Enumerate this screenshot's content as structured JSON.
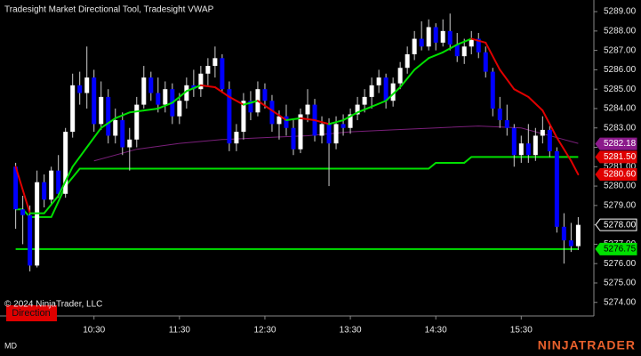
{
  "chart_data": {
    "type": "candlestick",
    "title": "Tradesight Market Directional Tool, Tradesight VWAP",
    "watermark": "© 2024 NinjaTrader, LLC",
    "indicator_label": "Direction",
    "footer_left": "MD",
    "brand": "NINJATRADER",
    "up_color": "#ffffff",
    "down_color": "#0000ff",
    "x": [
      "09:35",
      "09:40",
      "09:45",
      "09:50",
      "09:55",
      "10:00",
      "10:05",
      "10:10",
      "10:15",
      "10:20",
      "10:25",
      "10:30",
      "10:35",
      "10:40",
      "10:45",
      "10:50",
      "10:55",
      "11:00",
      "11:05",
      "11:10",
      "11:15",
      "11:20",
      "11:25",
      "11:30",
      "11:35",
      "11:40",
      "11:45",
      "11:50",
      "11:55",
      "12:00",
      "12:05",
      "12:10",
      "12:15",
      "12:20",
      "12:25",
      "12:30",
      "12:35",
      "12:40",
      "12:45",
      "12:50",
      "12:55",
      "13:00",
      "13:05",
      "13:10",
      "13:15",
      "13:20",
      "13:25",
      "13:30",
      "13:35",
      "13:40",
      "13:45",
      "13:50",
      "13:55",
      "14:00",
      "14:05",
      "14:10",
      "14:15",
      "14:20",
      "14:25",
      "14:30",
      "14:35",
      "14:40",
      "14:45",
      "14:50",
      "14:55",
      "15:00",
      "15:05",
      "15:10",
      "15:15",
      "15:20",
      "15:25",
      "15:30",
      "15:35",
      "15:40",
      "15:45",
      "15:50",
      "15:55",
      "16:00",
      "16:05",
      "16:10"
    ],
    "open": [
      5281.0,
      5278.8,
      5278.5,
      5275.9,
      5280.2,
      5279.3,
      5280.8,
      5279.6,
      5282.8,
      5285.2,
      5284.8,
      5285.6,
      5283.2,
      5284.6,
      5282.6,
      5283.4,
      5282.0,
      5282.4,
      5284.2,
      5285.6,
      5284.8,
      5284.2,
      5285.0,
      5283.6,
      5284.4,
      5285.2,
      5285.0,
      5285.8,
      5286.2,
      5286.6,
      5285.0,
      5282.2,
      5282.8,
      5284.4,
      5283.8,
      5285.0,
      5284.4,
      5283.2,
      5283.6,
      5283.0,
      5281.9,
      5283.7,
      5284.2,
      5282.6,
      5283.2,
      5282.2,
      5283.2,
      5283.0,
      5283.7,
      5284.2,
      5284.6,
      5285.2,
      5285.6,
      5284.4,
      5285.3,
      5286.1,
      5286.8,
      5287.6,
      5287.2,
      5288.2,
      5287.4,
      5288.0,
      5287.3,
      5286.7,
      5287.2,
      5287.6,
      5286.9,
      5285.9,
      5284.0,
      5283.4,
      5283.0,
      5281.6,
      5282.2,
      5281.6,
      5282.6,
      5282.9,
      5281.8,
      5277.9,
      5277.2,
      5276.9
    ],
    "high": [
      5281.2,
      5279.5,
      5279.0,
      5280.8,
      5280.6,
      5281.0,
      5281.6,
      5283.0,
      5285.8,
      5285.9,
      5287.2,
      5286.0,
      5285.4,
      5285.0,
      5284.0,
      5283.8,
      5283.0,
      5284.6,
      5286.2,
      5285.9,
      5285.6,
      5285.4,
      5285.3,
      5284.8,
      5285.6,
      5286.0,
      5286.2,
      5286.6,
      5287.2,
      5286.8,
      5285.4,
      5283.2,
      5284.8,
      5284.9,
      5285.4,
      5285.3,
      5284.7,
      5283.9,
      5284.2,
      5283.4,
      5284.0,
      5285.0,
      5284.5,
      5283.6,
      5283.5,
      5283.6,
      5283.7,
      5284.0,
      5284.6,
      5285.0,
      5285.6,
      5286.0,
      5285.8,
      5285.6,
      5286.4,
      5287.2,
      5288.0,
      5288.5,
      5288.6,
      5288.4,
      5288.6,
      5288.9,
      5287.9,
      5287.6,
      5288.0,
      5287.9,
      5287.2,
      5286.1,
      5284.6,
      5284.2,
      5283.2,
      5282.6,
      5283.2,
      5283.0,
      5283.6,
      5283.1,
      5282.0,
      5278.6,
      5278.1,
      5278.4
    ],
    "low": [
      5277.8,
      5277.0,
      5275.6,
      5275.8,
      5278.9,
      5279.0,
      5279.4,
      5279.4,
      5282.5,
      5284.2,
      5284.0,
      5282.8,
      5282.9,
      5282.2,
      5282.2,
      5281.6,
      5280.8,
      5282.0,
      5284.0,
      5284.4,
      5283.8,
      5283.8,
      5283.2,
      5283.2,
      5284.0,
      5284.6,
      5284.6,
      5285.2,
      5285.6,
      5284.8,
      5281.8,
      5281.8,
      5282.4,
      5283.4,
      5283.6,
      5284.0,
      5282.8,
      5282.4,
      5282.6,
      5281.6,
      5281.7,
      5283.3,
      5282.3,
      5282.2,
      5280.0,
      5281.9,
      5282.6,
      5282.7,
      5283.4,
      5283.8,
      5284.0,
      5284.8,
      5284.0,
      5284.1,
      5285.0,
      5285.8,
      5286.5,
      5287.0,
      5287.0,
      5287.0,
      5287.2,
      5287.0,
      5286.4,
      5286.3,
      5286.8,
      5286.6,
      5285.6,
      5283.6,
      5283.0,
      5282.6,
      5281.0,
      5281.2,
      5281.2,
      5281.3,
      5282.2,
      5281.5,
      5277.6,
      5276.0,
      5276.6,
      5276.7
    ],
    "close": [
      5278.8,
      5278.5,
      5275.9,
      5280.2,
      5279.3,
      5280.8,
      5279.6,
      5282.8,
      5285.2,
      5284.8,
      5285.6,
      5283.2,
      5284.6,
      5282.6,
      5283.4,
      5282.0,
      5282.4,
      5284.2,
      5285.6,
      5284.8,
      5284.2,
      5285.0,
      5283.6,
      5284.4,
      5285.2,
      5285.0,
      5285.8,
      5286.2,
      5286.6,
      5285.0,
      5282.2,
      5282.8,
      5284.4,
      5283.8,
      5285.0,
      5284.4,
      5283.2,
      5283.6,
      5283.0,
      5281.9,
      5283.7,
      5284.2,
      5282.6,
      5283.2,
      5282.2,
      5283.2,
      5283.0,
      5283.7,
      5284.2,
      5284.6,
      5285.2,
      5285.6,
      5284.4,
      5285.3,
      5286.1,
      5286.8,
      5287.6,
      5287.2,
      5288.2,
      5287.4,
      5288.0,
      5287.3,
      5286.7,
      5287.2,
      5287.6,
      5286.9,
      5285.9,
      5284.0,
      5283.4,
      5283.0,
      5281.6,
      5282.2,
      5281.6,
      5282.6,
      5282.9,
      5281.8,
      5277.9,
      5277.2,
      5276.9,
      5278.0
    ],
    "moving_average": {
      "x": [
        "09:35",
        "09:45",
        "09:55",
        "10:05",
        "10:15",
        "10:25",
        "10:35",
        "10:45",
        "10:55",
        "11:05",
        "11:15",
        "11:25",
        "11:35",
        "11:45",
        "11:55",
        "12:05",
        "12:15",
        "12:25",
        "12:35",
        "12:45",
        "12:55",
        "13:05",
        "13:15",
        "13:25",
        "13:35",
        "13:45",
        "13:55",
        "14:05",
        "14:15",
        "14:25",
        "14:35",
        "14:45",
        "14:55",
        "15:05",
        "15:15",
        "15:25",
        "15:35",
        "15:45",
        "15:55",
        "16:05",
        "16:10"
      ],
      "values": [
        5281.0,
        5278.6,
        5278.6,
        5279.5,
        5281.0,
        5282.0,
        5283.0,
        5283.5,
        5283.8,
        5283.9,
        5284.0,
        5284.3,
        5284.9,
        5285.2,
        5285.1,
        5284.6,
        5284.2,
        5284.4,
        5283.9,
        5283.4,
        5283.5,
        5283.4,
        5283.2,
        5283.4,
        5283.8,
        5284.1,
        5284.4,
        5285.1,
        5286.0,
        5286.6,
        5286.9,
        5287.3,
        5287.6,
        5287.4,
        5286.0,
        5285.0,
        5284.6,
        5283.9,
        5282.5,
        5281.3,
        5280.6
      ],
      "rising_color": "#00e000",
      "falling_color": "#e00000"
    },
    "overlays": [
      {
        "x": [
          "09:35",
          "09:40",
          "09:45",
          "10:00",
          "10:10",
          "10:20",
          "14:25",
          "14:30",
          "14:50",
          "14:55",
          "16:10"
        ],
        "values": [
          5278.8,
          5278.8,
          5278.4,
          5278.4,
          5280.0,
          5280.9,
          5280.9,
          5281.2,
          5281.2,
          5281.5,
          5281.5
        ],
        "color": "#00e000",
        "width": 2
      },
      {
        "x": [
          "09:35",
          "16:10"
        ],
        "values": [
          5276.75,
          5276.75
        ],
        "color": "#00e000",
        "width": 2
      },
      {
        "x": [
          "10:30",
          "11:00",
          "11:30",
          "12:00",
          "12:30",
          "13:00",
          "13:30",
          "14:00",
          "14:30",
          "15:00",
          "15:30",
          "15:50",
          "16:10"
        ],
        "values": [
          5281.3,
          5281.9,
          5282.2,
          5282.4,
          5282.5,
          5282.6,
          5282.8,
          5282.9,
          5283.0,
          5283.1,
          5283.0,
          5282.6,
          5282.2
        ],
        "color": "#7a1f7a",
        "width": 1
      }
    ],
    "price_markers": [
      {
        "value": 5282.18,
        "label": "5282.18",
        "color": "#8b1a8b",
        "text_color": "#ffffff"
      },
      {
        "value": 5281.5,
        "label": "5281.50",
        "color": "#e00000",
        "text_color": "#ffffff"
      },
      {
        "value": 5280.6,
        "label": "5280.60",
        "color": "#e00000",
        "text_color": "#ffffff"
      },
      {
        "value": 5278,
        "label": "5278.00",
        "color": "#000000",
        "text_color": "#ffffff"
      },
      {
        "value": 5276.75,
        "label": "5276.75",
        "color": "#00e000",
        "text_color": "#000000"
      }
    ],
    "xlim": [
      "09:24",
      "16:21"
    ],
    "xticks": [
      "10:30",
      "11:30",
      "12:30",
      "13:30",
      "14:30",
      "15:30"
    ],
    "ylim": [
      5273.3,
      5289.6
    ],
    "yticks": [
      {
        "value": 5274,
        "label": "5274.00"
      },
      {
        "value": 5275,
        "label": "5275.00"
      },
      {
        "value": 5276,
        "label": "5276.00"
      },
      {
        "value": 5277,
        "label": "5277.00"
      },
      {
        "value": 5278,
        "label": "5278.00"
      },
      {
        "value": 5279,
        "label": "5279.00"
      },
      {
        "value": 5280,
        "label": "5280.00"
      },
      {
        "value": 5281,
        "label": "5281.00"
      },
      {
        "value": 5282,
        "label": "5282.00"
      },
      {
        "value": 5283,
        "label": "5283.00"
      },
      {
        "value": 5284,
        "label": "5284.00"
      },
      {
        "value": 5285,
        "label": "5285.00"
      },
      {
        "value": 5286,
        "label": "5286.00"
      },
      {
        "value": 5287,
        "label": "5287.00"
      },
      {
        "value": 5288,
        "label": "5288.00"
      },
      {
        "value": 5289,
        "label": "5289.00"
      }
    ]
  }
}
